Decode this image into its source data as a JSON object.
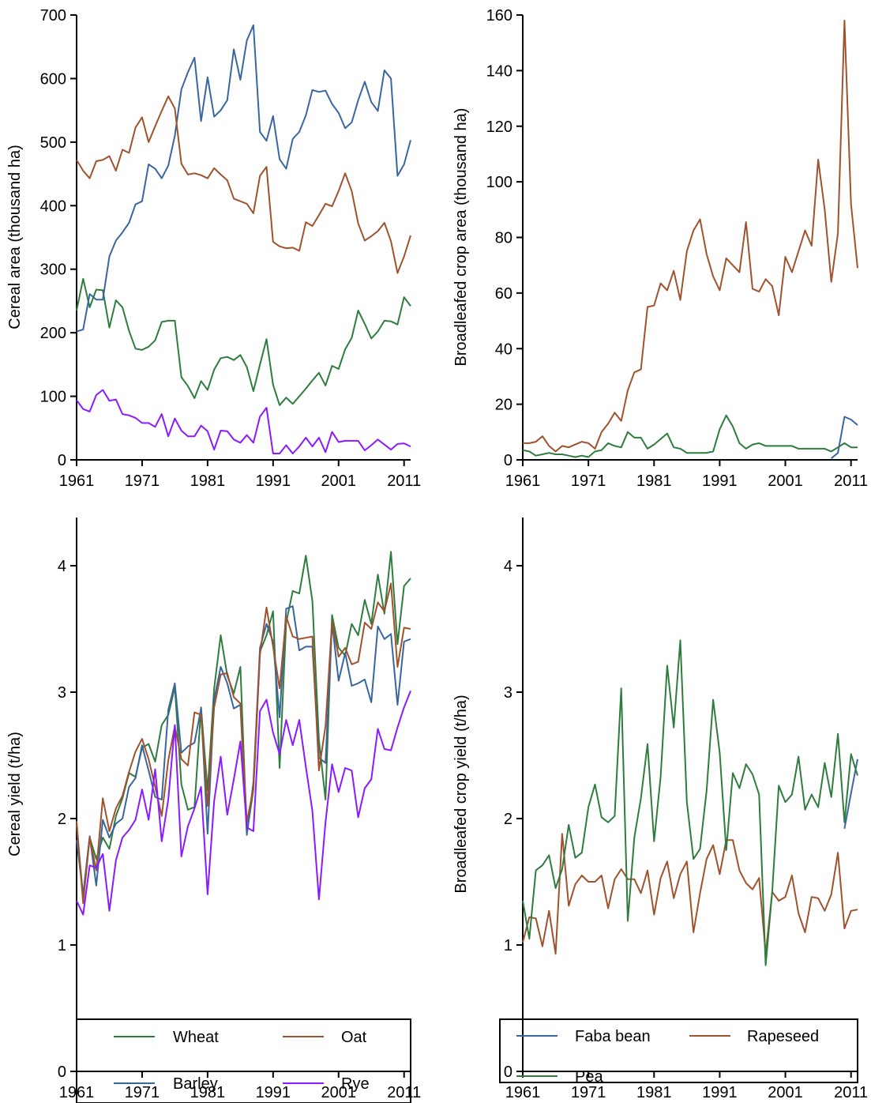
{
  "chart_data": [
    {
      "type": "line",
      "ylabel": "Cereal area (thousand ha)",
      "xlim": [
        1961,
        2012
      ],
      "ylim": [
        0,
        700
      ],
      "x_ticks": [
        1961,
        1971,
        1981,
        1991,
        2001,
        2011
      ],
      "x_tick_labels": [
        "1961",
        "1971",
        "1981",
        "1991",
        "2001",
        "2011"
      ],
      "y_ticks": [
        0,
        100,
        200,
        300,
        400,
        500,
        600,
        700
      ],
      "y_tick_labels": [
        "0",
        "100",
        "200",
        "300",
        "400",
        "500",
        "600",
        "700"
      ],
      "x_start": 1961,
      "series": [
        {
          "name": "Wheat",
          "color": "#2e7d3e",
          "values": [
            235,
            285,
            240,
            268,
            267,
            208,
            251,
            240,
            203,
            175,
            173,
            178,
            188,
            217,
            219,
            219,
            130,
            116,
            97,
            124,
            110,
            142,
            160,
            162,
            157,
            165,
            146,
            108,
            150,
            190,
            118,
            86,
            98,
            88,
            100,
            112,
            125,
            137,
            117,
            148,
            143,
            174,
            192,
            235,
            214,
            191,
            202,
            219,
            218,
            213,
            256,
            242
          ]
        },
        {
          "name": "Barley",
          "color": "#3a66a0",
          "values": [
            202,
            205,
            261,
            252,
            252,
            320,
            345,
            358,
            373,
            402,
            407,
            465,
            458,
            443,
            463,
            510,
            583,
            610,
            633,
            533,
            602,
            540,
            550,
            566,
            646,
            598,
            660,
            684,
            516,
            502,
            541,
            473,
            458,
            505,
            516,
            542,
            582,
            579,
            581,
            560,
            546,
            522,
            531,
            566,
            595,
            563,
            549,
            613,
            600,
            447,
            465,
            503
          ]
        },
        {
          "name": "Oat",
          "color": "#a0522d",
          "values": [
            472,
            455,
            443,
            470,
            472,
            478,
            455,
            488,
            483,
            523,
            539,
            500,
            525,
            549,
            572,
            553,
            466,
            449,
            451,
            448,
            443,
            459,
            449,
            440,
            411,
            407,
            403,
            388,
            447,
            461,
            343,
            336,
            333,
            334,
            329,
            374,
            368,
            385,
            403,
            399,
            423,
            451,
            423,
            372,
            345,
            352,
            360,
            373,
            344,
            294,
            320,
            353
          ]
        },
        {
          "name": "Rye",
          "color": "#8b1aff",
          "values": [
            94,
            80,
            76,
            102,
            110,
            93,
            95,
            72,
            70,
            66,
            58,
            58,
            52,
            72,
            37,
            65,
            46,
            37,
            37,
            54,
            45,
            16,
            46,
            45,
            32,
            27,
            39,
            27,
            68,
            82,
            10,
            10,
            23,
            10,
            21,
            35,
            21,
            35,
            12,
            44,
            28,
            30,
            30,
            30,
            15,
            23,
            32,
            24,
            16,
            25,
            26,
            21
          ]
        }
      ]
    },
    {
      "type": "line",
      "ylabel": "Broadleafed crop area (thousand ha)",
      "xlim": [
        1961,
        2012
      ],
      "ylim": [
        0,
        160
      ],
      "x_ticks": [
        1961,
        1971,
        1981,
        1991,
        2001,
        2011
      ],
      "x_tick_labels": [
        "1961",
        "1971",
        "1981",
        "1991",
        "2001",
        "2011"
      ],
      "y_ticks": [
        0,
        20,
        40,
        60,
        80,
        100,
        120,
        140,
        160
      ],
      "y_tick_labels": [
        "0",
        "20",
        "40",
        "60",
        "80",
        "100",
        "120",
        "140",
        "160"
      ],
      "x_start": 1961,
      "series": [
        {
          "name": "Faba bean",
          "color": "#3a66a0",
          "start": 2008,
          "values": [
            0.5,
            2.5,
            15.5,
            14.5,
            12.5
          ]
        },
        {
          "name": "Rapeseed",
          "color": "#a0522d",
          "values": [
            6,
            6,
            6.5,
            8.5,
            5,
            3,
            5,
            4.5,
            5.5,
            6.5,
            6,
            4,
            10,
            13,
            17,
            14,
            25,
            31.5,
            32.5,
            55,
            55.5,
            63.5,
            61,
            68,
            57.5,
            75,
            82.5,
            86.5,
            74,
            66,
            61,
            72.5,
            70,
            67.5,
            85.5,
            61.5,
            60.5,
            65,
            62.5,
            52,
            73,
            67.5,
            75,
            82.5,
            77,
            108,
            90,
            64,
            81.5,
            158,
            92,
            69
          ]
        },
        {
          "name": "Pea",
          "color": "#2e7d3e",
          "values": [
            3.5,
            3,
            1.5,
            2,
            2.5,
            2,
            2,
            1.5,
            1,
            1.5,
            1,
            3,
            3.5,
            6,
            5,
            4.5,
            10,
            8,
            8,
            4,
            5.5,
            7.5,
            9.5,
            4.5,
            4,
            2.5,
            2.5,
            2.5,
            2.5,
            3,
            11,
            16,
            12,
            6,
            4,
            5.5,
            6,
            5,
            5,
            5,
            5,
            5,
            4,
            4,
            4,
            4,
            4,
            3,
            4.5,
            6,
            4.5,
            4.5
          ]
        }
      ]
    },
    {
      "type": "line",
      "ylabel": "Cereal yield (t/ha)",
      "xlim": [
        1961,
        2012
      ],
      "ylim": [
        0,
        4.5
      ],
      "x_ticks": [
        1961,
        1971,
        1981,
        1991,
        2001,
        2011
      ],
      "x_tick_labels": [
        "1961",
        "1971",
        "1981",
        "1991",
        "2001",
        "2011"
      ],
      "y_ticks": [
        0,
        1,
        2,
        3,
        4
      ],
      "y_tick_labels": [
        "0",
        "1",
        "2",
        "3",
        "4"
      ],
      "x_start": 1961,
      "series": [
        {
          "name": "Wheat",
          "color": "#2e7d3e",
          "values": [
            1.95,
            1.38,
            1.85,
            1.68,
            1.85,
            1.76,
            2.02,
            2.16,
            2.36,
            2.33,
            2.56,
            2.59,
            2.45,
            2.74,
            2.82,
            3.04,
            2.27,
            2.07,
            2.09,
            2.88,
            2.22,
            3.03,
            3.45,
            3.13,
            2.99,
            3.2,
            1.88,
            2.23,
            3.32,
            3.45,
            3.64,
            2.4,
            3.55,
            3.8,
            3.78,
            4.08,
            3.72,
            2.62,
            2.15,
            3.61,
            3.35,
            3.29,
            3.54,
            3.45,
            3.73,
            3.54,
            3.93,
            3.62,
            4.11,
            3.38,
            3.84,
            3.9
          ]
        },
        {
          "name": "Barley",
          "color": "#3a66a0",
          "values": [
            1.83,
            1.4,
            1.86,
            1.47,
            1.99,
            1.85,
            1.96,
            2.0,
            2.25,
            2.32,
            2.58,
            2.38,
            2.17,
            2.15,
            2.86,
            3.07,
            2.52,
            2.57,
            2.6,
            2.87,
            1.88,
            2.94,
            3.2,
            3.07,
            2.87,
            2.9,
            1.87,
            2.29,
            3.35,
            3.54,
            3.4,
            2.8,
            3.66,
            3.68,
            3.33,
            3.36,
            3.36,
            2.48,
            2.44,
            3.55,
            3.09,
            3.31,
            3.05,
            3.07,
            3.1,
            2.92,
            3.52,
            3.42,
            3.46,
            2.9,
            3.4,
            3.42
          ]
        },
        {
          "name": "Oat",
          "color": "#a0522d",
          "values": [
            1.98,
            1.33,
            1.85,
            1.59,
            2.16,
            1.9,
            2.08,
            2.18,
            2.37,
            2.53,
            2.63,
            2.47,
            2.25,
            2.02,
            2.46,
            2.73,
            2.47,
            2.42,
            2.84,
            2.82,
            2.1,
            2.88,
            3.14,
            3.15,
            2.96,
            2.91,
            1.97,
            2.24,
            3.3,
            3.67,
            3.36,
            3.03,
            3.6,
            3.44,
            3.42,
            3.43,
            3.44,
            2.38,
            2.73,
            3.56,
            3.28,
            3.35,
            3.22,
            3.24,
            3.55,
            3.5,
            3.71,
            3.64,
            3.86,
            3.2,
            3.51,
            3.5
          ]
        },
        {
          "name": "Rye",
          "color": "#8b1aff",
          "values": [
            1.35,
            1.24,
            1.63,
            1.61,
            1.72,
            1.27,
            1.67,
            1.85,
            1.91,
            1.99,
            2.23,
            1.99,
            2.39,
            1.82,
            2.15,
            2.74,
            1.7,
            1.94,
            2.08,
            2.25,
            1.4,
            2.14,
            2.49,
            2.03,
            2.31,
            2.61,
            1.93,
            1.9,
            2.85,
            2.94,
            2.68,
            2.51,
            2.78,
            2.58,
            2.78,
            2.41,
            2.06,
            1.36,
            1.97,
            2.43,
            2.21,
            2.4,
            2.38,
            2.01,
            2.24,
            2.31,
            2.71,
            2.55,
            2.54,
            2.72,
            2.88,
            3.01
          ]
        }
      ]
    },
    {
      "type": "line",
      "ylabel": "Broadleafed crop yield (t/ha)",
      "xlim": [
        1961,
        2012
      ],
      "ylim": [
        0,
        4.5
      ],
      "x_ticks": [
        1961,
        1971,
        1981,
        1991,
        2001,
        2011
      ],
      "x_tick_labels": [
        "1961",
        "1971",
        "1981",
        "1991",
        "2001",
        "2011"
      ],
      "y_ticks": [
        0,
        1,
        2,
        3,
        4
      ],
      "y_tick_labels": [
        "0",
        "1",
        "2",
        "3",
        "4"
      ],
      "x_start": 1961,
      "series": [
        {
          "name": "Faba bean",
          "color": "#3a66a0",
          "start": 2010,
          "values": [
            1.92,
            2.2,
            2.47
          ]
        },
        {
          "name": "Rapeseed",
          "color": "#a0522d",
          "values": [
            1.02,
            1.22,
            1.21,
            0.99,
            1.27,
            0.93,
            1.88,
            1.31,
            1.48,
            1.55,
            1.5,
            1.5,
            1.55,
            1.29,
            1.52,
            1.6,
            1.52,
            1.52,
            1.41,
            1.59,
            1.24,
            1.53,
            1.66,
            1.37,
            1.56,
            1.66,
            1.1,
            1.41,
            1.68,
            1.79,
            1.56,
            1.83,
            1.83,
            1.59,
            1.49,
            1.44,
            1.53,
            0.93,
            1.42,
            1.35,
            1.38,
            1.55,
            1.25,
            1.1,
            1.38,
            1.37,
            1.27,
            1.4,
            1.73,
            1.13,
            1.27,
            1.28
          ]
        },
        {
          "name": "Pea",
          "color": "#2e7d3e",
          "values": [
            1.35,
            1.05,
            1.59,
            1.63,
            1.71,
            1.45,
            1.6,
            1.95,
            1.69,
            1.73,
            2.09,
            2.27,
            2.01,
            1.97,
            2.02,
            3.03,
            1.19,
            1.85,
            2.16,
            2.59,
            1.82,
            2.33,
            3.21,
            2.72,
            3.41,
            2.13,
            1.68,
            1.76,
            2.22,
            2.94,
            2.52,
            1.75,
            2.36,
            2.24,
            2.43,
            2.35,
            2.19,
            0.84,
            1.42,
            2.26,
            2.13,
            2.19,
            2.49,
            2.07,
            2.19,
            2.09,
            2.44,
            2.17,
            2.67,
            1.97,
            2.51,
            2.34
          ]
        }
      ]
    }
  ],
  "legends": [
    {
      "entries": [
        {
          "name": "Wheat",
          "color": "#2e7d3e"
        },
        {
          "name": "Oat",
          "color": "#a0522d"
        },
        {
          "name": "Barley",
          "color": "#3a66a0"
        },
        {
          "name": "Rye",
          "color": "#8b1aff"
        }
      ]
    },
    {
      "entries": [
        {
          "name": "Faba bean",
          "color": "#3a66a0"
        },
        {
          "name": "Rapeseed",
          "color": "#a0522d"
        },
        {
          "name": "Pea",
          "color": "#2e7d3e"
        }
      ]
    }
  ]
}
